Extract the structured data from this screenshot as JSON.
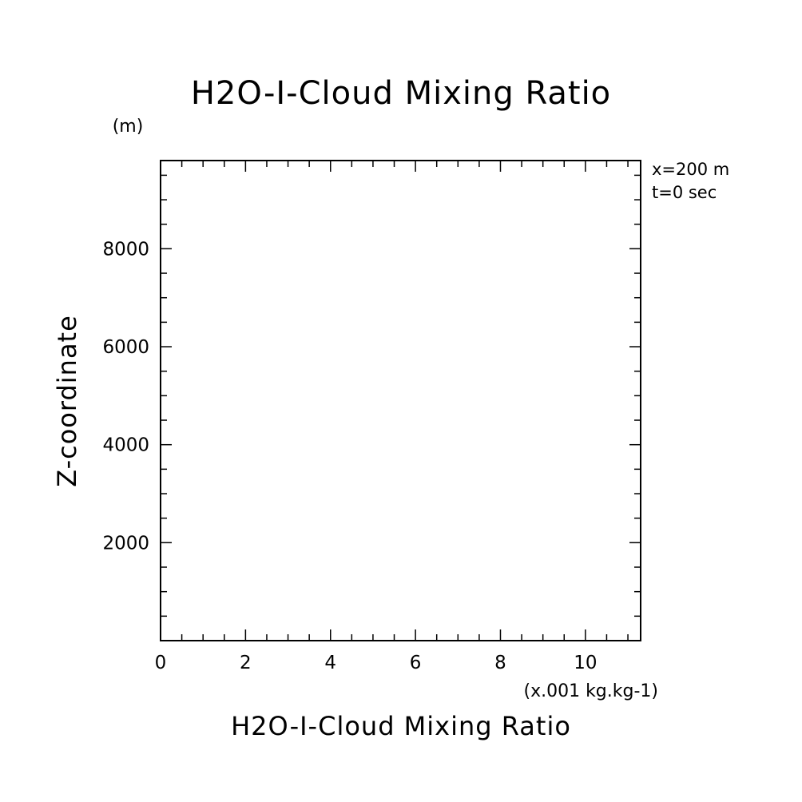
{
  "chart_data": {
    "type": "line",
    "title": "H2O-I-Cloud Mixing Ratio",
    "xlabel": "H2O-I-Cloud Mixing Ratio",
    "x_unit": "(x.001 kg.kg-1)",
    "ylabel": "Z-coordinate",
    "y_unit": "(m)",
    "annotations": [
      "x=200 m",
      "t=0 sec"
    ],
    "xlim": [
      0,
      11.3
    ],
    "ylim": [
      0,
      9800
    ],
    "x_ticks": [
      0,
      2,
      4,
      6,
      8,
      10
    ],
    "y_ticks": [
      2000,
      4000,
      6000,
      8000
    ],
    "x_minor_step": 0.5,
    "y_minor_step": 500,
    "grid": false,
    "series": []
  }
}
